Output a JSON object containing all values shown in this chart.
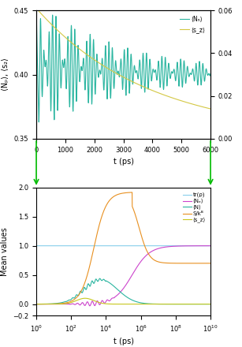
{
  "top": {
    "xlim": [
      0,
      6000
    ],
    "ylim_left": [
      0.35,
      0.45
    ],
    "ylim_right": [
      0,
      0.06
    ],
    "xlabel": "t (ps)",
    "ylabel_left": "⟨Nₚ⟩, ⟨s₂⟩",
    "legend": [
      "⟨Nₙ⟩",
      "⟨s_z⟩"
    ],
    "color_Np": "#2ab5a0",
    "color_sz": "#d4c844",
    "yticks_left": [
      0.35,
      0.4,
      0.45
    ],
    "yticks_right": [
      0,
      0.02,
      0.04,
      0.06
    ]
  },
  "bottom": {
    "xlim": [
      1,
      10000000000.0
    ],
    "ylim": [
      -0.2,
      2.0
    ],
    "xlabel": "t (ps)",
    "ylabel": "Mean values",
    "legend": [
      "tr(ρ)",
      "⟨Nₑ⟩",
      "⟨N⟩",
      "S/kᴮ",
      "⟨s_z⟩"
    ],
    "color_tr": "#87ceeb",
    "color_Ne": "#cc44cc",
    "color_N": "#2ab5a0",
    "color_S": "#e89020",
    "color_sz": "#c8c820",
    "yticks": [
      -0.2,
      0,
      0.5,
      1.0,
      1.5,
      2.0
    ]
  },
  "arrow_color": "#00bb00"
}
